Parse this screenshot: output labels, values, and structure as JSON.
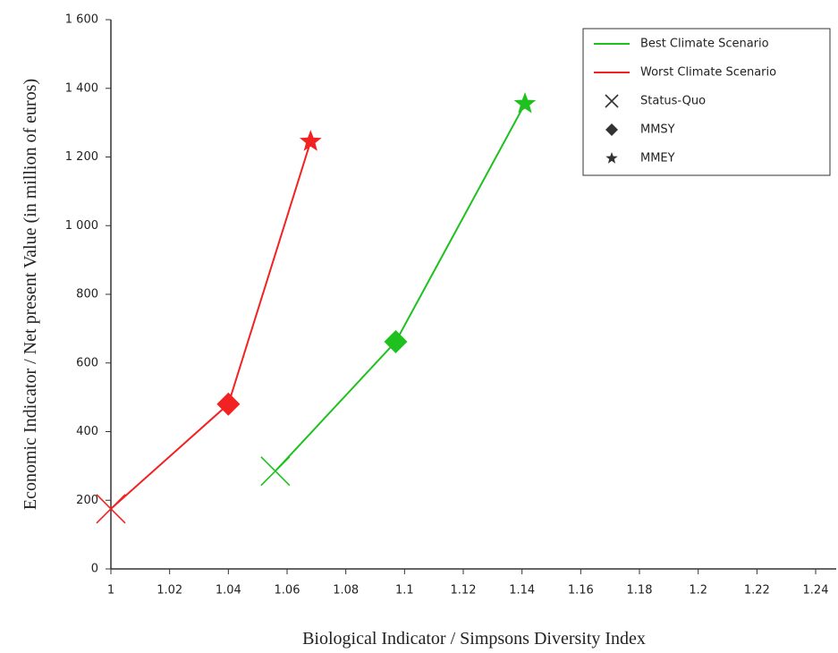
{
  "chart_data": {
    "type": "line",
    "x_label": "Biological Indicator / Simpsons Diversity Index",
    "y_label": "Economic Indicator / Net present Value (in million of euros)",
    "xlim": [
      1,
      1.247
    ],
    "xticks": [
      1,
      1.02,
      1.04,
      1.06,
      1.08,
      1.1,
      1.12,
      1.14,
      1.16,
      1.18,
      1.2,
      1.22,
      1.24
    ],
    "ylim": [
      0,
      1600
    ],
    "yticks": [
      0,
      200,
      400,
      600,
      800,
      {
        "value": 1000,
        "label": "1 000"
      },
      {
        "value": 1200,
        "label": "1 200"
      },
      {
        "value": 1400,
        "label": "1 400"
      },
      {
        "value": 1600,
        "label": "1 600"
      }
    ],
    "legend": "upper right",
    "markers": [
      {
        "name": "Status-Quo",
        "symbol": "cross"
      },
      {
        "name": "MMSY",
        "symbol": "diamond"
      },
      {
        "name": "MMEY",
        "symbol": "star"
      }
    ],
    "marker_legend_color": "#333333",
    "series": [
      {
        "name": "Best Climate Scenario",
        "color": "#1fc11f",
        "x": [
          1.056,
          1.097,
          1.141
        ],
        "values": [
          285,
          662,
          1355
        ]
      },
      {
        "name": "Worst Climate Scenario",
        "color": "#f22222",
        "x": [
          1.0,
          1.04,
          1.068
        ],
        "values": [
          175,
          480,
          1245
        ]
      }
    ]
  }
}
